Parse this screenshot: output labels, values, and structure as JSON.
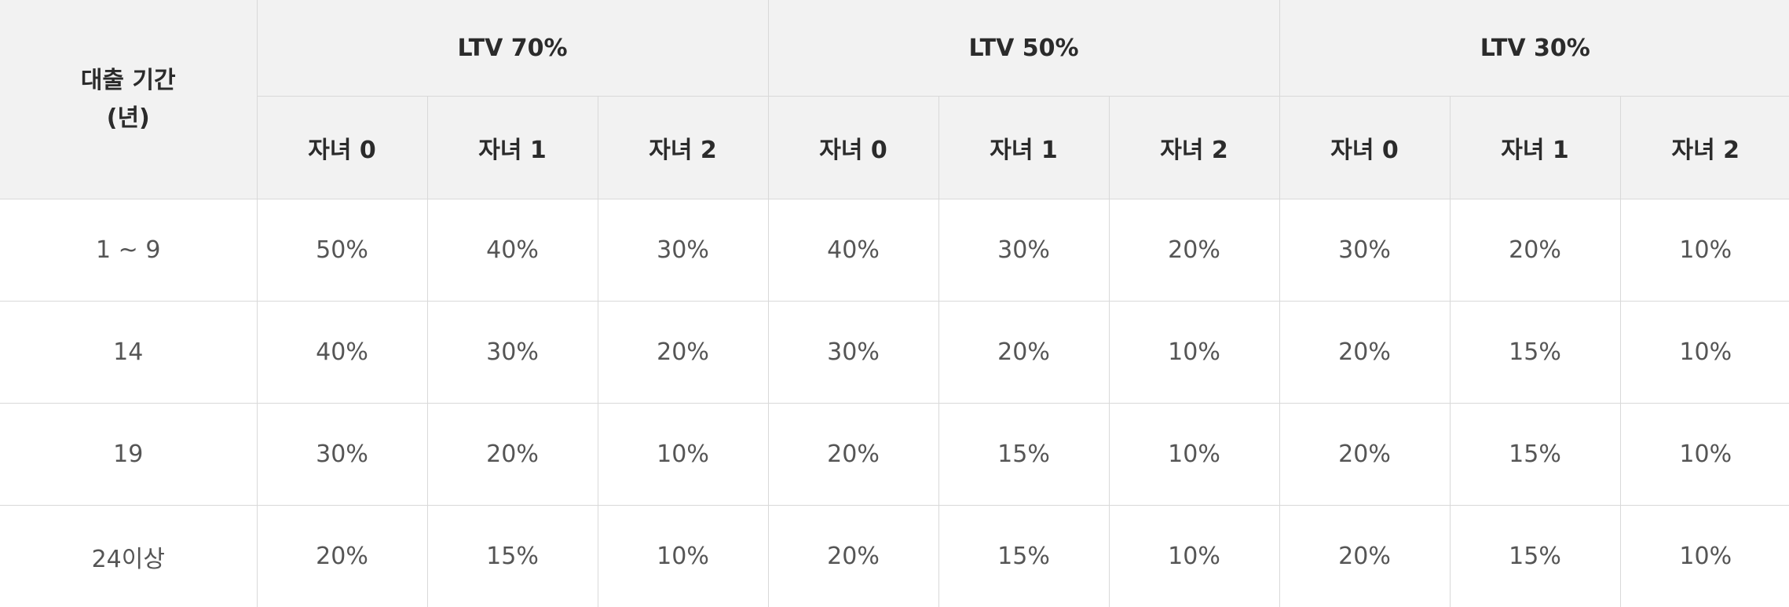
{
  "table": {
    "period_header": {
      "line1": "대출 기간",
      "line2": "(년)"
    },
    "ltv_groups": [
      {
        "label": "LTV 70%",
        "children": [
          "자녀 0",
          "자녀 1",
          "자녀 2"
        ]
      },
      {
        "label": "LTV 50%",
        "children": [
          "자녀 0",
          "자녀 1",
          "자녀 2"
        ]
      },
      {
        "label": "LTV 30%",
        "children": [
          "자녀 0",
          "자녀 1",
          "자녀 2"
        ]
      }
    ],
    "rows": [
      {
        "period": "1 ~ 9",
        "values": [
          "50%",
          "40%",
          "30%",
          "40%",
          "30%",
          "20%",
          "30%",
          "20%",
          "10%"
        ]
      },
      {
        "period": "14",
        "values": [
          "40%",
          "30%",
          "20%",
          "30%",
          "20%",
          "10%",
          "20%",
          "15%",
          "10%"
        ]
      },
      {
        "period": "19",
        "values": [
          "30%",
          "20%",
          "10%",
          "20%",
          "15%",
          "10%",
          "20%",
          "15%",
          "10%"
        ]
      },
      {
        "period": "24이상",
        "values": [
          "20%",
          "15%",
          "10%",
          "20%",
          "15%",
          "10%",
          "20%",
          "15%",
          "10%"
        ]
      }
    ]
  }
}
